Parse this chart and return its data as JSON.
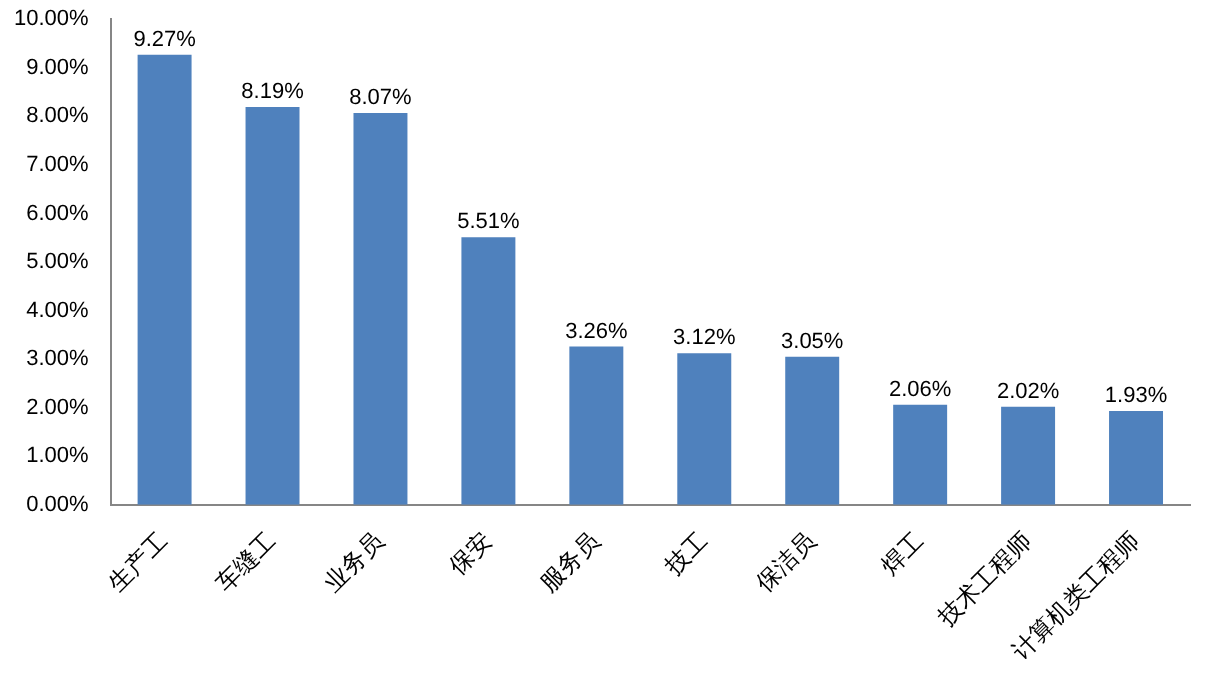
{
  "chart_data": {
    "type": "bar",
    "categories": [
      "生产工",
      "车缝工",
      "业务员",
      "保安",
      "服务员",
      "技工",
      "保洁员",
      "焊工",
      "技术工程师",
      "计算机类工程师"
    ],
    "values": [
      9.27,
      8.19,
      8.07,
      5.51,
      3.26,
      3.12,
      3.05,
      2.06,
      2.02,
      1.93
    ],
    "value_labels": [
      "9.27%",
      "8.19%",
      "8.07%",
      "5.51%",
      "3.26%",
      "3.12%",
      "3.05%",
      "2.06%",
      "2.02%",
      "1.93%"
    ],
    "color": "#4f81bd",
    "ylim": [
      0,
      10
    ],
    "yticks": [
      {
        "value": 0,
        "label": "0.00%"
      },
      {
        "value": 1,
        "label": "1.00%"
      },
      {
        "value": 2,
        "label": "2.00%"
      },
      {
        "value": 3,
        "label": "3.00%"
      },
      {
        "value": 4,
        "label": "4.00%"
      },
      {
        "value": 5,
        "label": "5.00%"
      },
      {
        "value": 6,
        "label": "6.00%"
      },
      {
        "value": 7,
        "label": "7.00%"
      },
      {
        "value": 8,
        "label": "8.00%"
      },
      {
        "value": 9,
        "label": "9.00%"
      },
      {
        "value": 10,
        "label": "10.00%"
      }
    ],
    "grid": false,
    "legend": false
  }
}
